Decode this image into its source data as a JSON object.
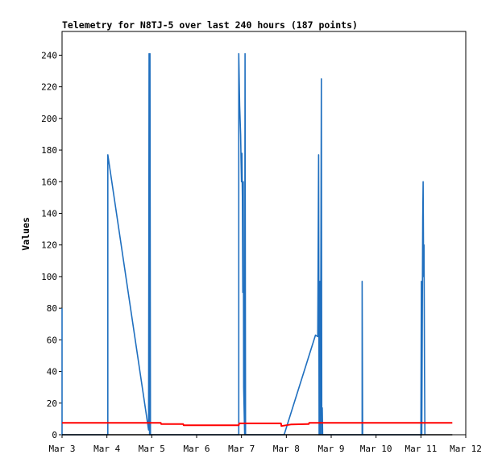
{
  "chart_data": {
    "type": "line",
    "title": "Telemetry for N8TJ-5 over last 240 hours (187 points)",
    "xlabel": "",
    "ylabel": "Values",
    "x_ticks": [
      "Mar 3",
      "Mar 4",
      "Mar 5",
      "Mar 6",
      "Mar 7",
      "Mar 8",
      "Mar 9",
      "Mar 10",
      "Mar 11",
      "Mar 12"
    ],
    "xlim": [
      0,
      9
    ],
    "y_ticks": [
      0,
      20,
      40,
      60,
      80,
      100,
      120,
      140,
      160,
      180,
      200,
      220,
      240
    ],
    "ylim": [
      0,
      255
    ],
    "grid": false,
    "legend": "none",
    "x_unit": "days since Mar 3 00:00",
    "series": [
      {
        "color": "#1f6fbf",
        "points": [
          [
            0.0,
            80
          ],
          [
            0.0,
            0
          ],
          [
            1.02,
            0
          ],
          [
            1.02,
            177
          ],
          [
            1.93,
            3
          ],
          [
            1.94,
            241
          ],
          [
            1.95,
            0
          ],
          [
            1.96,
            241
          ],
          [
            1.97,
            0
          ],
          [
            3.94,
            0
          ],
          [
            3.94,
            241
          ],
          [
            3.96,
            208
          ],
          [
            3.98,
            190
          ],
          [
            3.99,
            175
          ],
          [
            4.0,
            160
          ],
          [
            4.01,
            178
          ],
          [
            4.02,
            150
          ],
          [
            4.03,
            90
          ],
          [
            4.04,
            160
          ],
          [
            4.05,
            30
          ],
          [
            4.07,
            0
          ],
          [
            4.08,
            241
          ],
          [
            4.09,
            0
          ],
          [
            4.95,
            0
          ],
          [
            5.65,
            63
          ],
          [
            5.7,
            62
          ],
          [
            5.72,
            177
          ],
          [
            5.73,
            0
          ],
          [
            5.75,
            97
          ],
          [
            5.76,
            0
          ],
          [
            5.78,
            225
          ],
          [
            5.79,
            0
          ],
          [
            5.8,
            17
          ],
          [
            5.81,
            0
          ],
          [
            6.69,
            0
          ],
          [
            6.69,
            97
          ],
          [
            6.7,
            0
          ],
          [
            8.0,
            0
          ],
          [
            8.01,
            97
          ],
          [
            8.02,
            0
          ],
          [
            8.04,
            137
          ],
          [
            8.05,
            160
          ],
          [
            8.06,
            100
          ],
          [
            8.07,
            120
          ],
          [
            8.08,
            40
          ],
          [
            8.09,
            0
          ]
        ]
      },
      {
        "color": "#ff0000",
        "points": [
          [
            0.0,
            7.5
          ],
          [
            2.2,
            7.5
          ],
          [
            2.21,
            6.8
          ],
          [
            2.7,
            6.8
          ],
          [
            2.71,
            6.0
          ],
          [
            3.94,
            6.0
          ],
          [
            3.95,
            7.2
          ],
          [
            4.88,
            7.2
          ],
          [
            4.89,
            5.5
          ],
          [
            5.1,
            6.5
          ],
          [
            5.5,
            6.8
          ],
          [
            5.51,
            7.5
          ],
          [
            8.7,
            7.5
          ]
        ]
      },
      {
        "color": "#000000",
        "points": [
          [
            0.0,
            0
          ],
          [
            8.7,
            0
          ]
        ]
      }
    ]
  }
}
